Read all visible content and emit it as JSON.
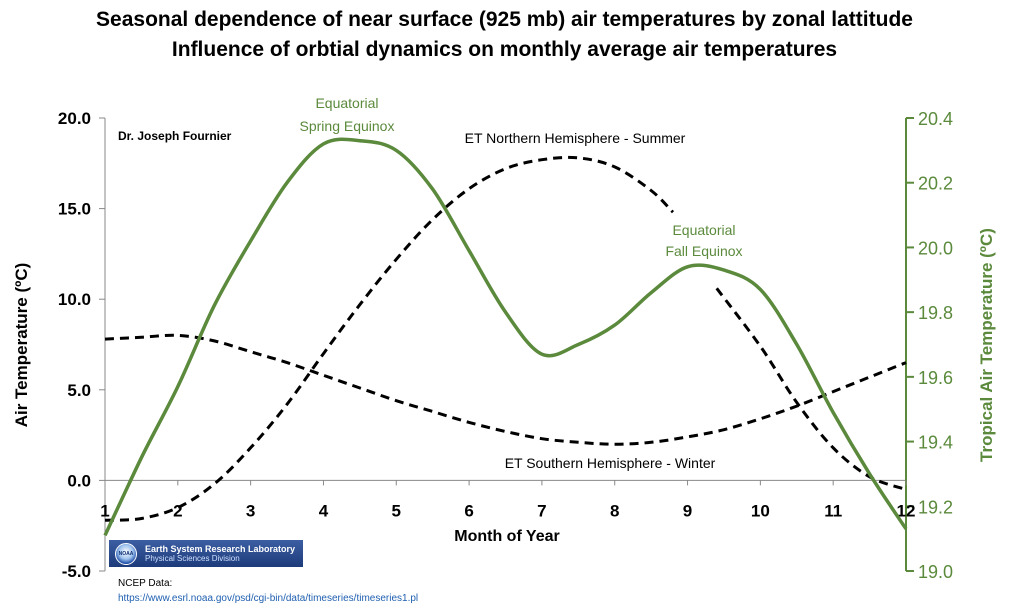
{
  "title_line1": "Seasonal dependence of near surface (925 mb) air temperatures by zonal lattitude",
  "title_line2": "Influence of orbtial dynamics on monthly average air temperatures",
  "author": "Dr. Joseph Fournier",
  "annotations": {
    "equatorial_spring_1": "Equatorial",
    "equatorial_spring_2": "Spring Equinox",
    "equatorial_fall_1": "Equatorial",
    "equatorial_fall_2": "Fall Equinox",
    "nh_summer": "ET Northern Hemisphere - Summer",
    "sh_winter": "ET Southern Hemisphere - Winter"
  },
  "source": {
    "logo_title": "Earth System Research Laboratory",
    "logo_subtitle": "Physical Sciences Division",
    "logo_badge": "NOAA",
    "label": "NCEP Data:",
    "url": "https://www.esrl.noaa.gov/psd/cgi-bin/data/timeseries/timeseries1.pl"
  },
  "chart_data": {
    "type": "line",
    "xlabel": "Month of Year",
    "ylabel": "Air Temperature (ºC)",
    "y2label": "Tropical Air Temperature (ºC)",
    "x_ticks": [
      "1",
      "2",
      "3",
      "4",
      "5",
      "6",
      "7",
      "8",
      "9",
      "10",
      "11",
      "12"
    ],
    "y_ticks": [
      "20.0",
      "15.0",
      "10.0",
      "5.0",
      "0.0",
      "-5.0"
    ],
    "y2_ticks": [
      "20.4",
      "20.2",
      "20.0",
      "19.8",
      "19.6",
      "19.4",
      "19.2",
      "19.0"
    ],
    "xlim": [
      1,
      12
    ],
    "ylim": [
      -5,
      20
    ],
    "y2lim": [
      19.0,
      20.4
    ],
    "colors": {
      "tropical": "#5b8a3c",
      "extratropical": "#000000"
    },
    "series": [
      {
        "name": "ET Northern Hemisphere - Summer",
        "axis": "left",
        "style": "dashed",
        "x": [
          1,
          1.5,
          2,
          2.5,
          3,
          3.5,
          4,
          4.5,
          5,
          5.5,
          6,
          6.5,
          7,
          7.5,
          8,
          8.5,
          8.8
        ],
        "y": [
          -2.2,
          -2.1,
          -1.5,
          -0.2,
          1.8,
          4.2,
          7.0,
          9.7,
          12.2,
          14.4,
          16.1,
          17.2,
          17.7,
          17.8,
          17.3,
          16.0,
          14.8
        ]
      },
      {
        "name": "ET Northern Hemisphere - Summer (continued)",
        "axis": "left",
        "style": "dashed",
        "x": [
          9.4,
          10,
          10.5,
          11,
          11.5,
          12
        ],
        "y": [
          10.6,
          7.4,
          4.3,
          1.8,
          0.2,
          -0.5
        ]
      },
      {
        "name": "ET Southern Hemisphere - Winter",
        "axis": "left",
        "style": "dashed",
        "x": [
          1,
          1.5,
          2,
          2.5,
          3,
          3.5,
          4,
          4.5,
          5,
          5.5,
          6,
          6.5,
          7,
          7.5,
          8,
          8.5,
          9,
          9.5,
          10,
          10.5,
          11,
          11.5,
          12
        ],
        "y": [
          7.8,
          7.9,
          8.0,
          7.7,
          7.1,
          6.5,
          5.8,
          5.1,
          4.4,
          3.8,
          3.2,
          2.7,
          2.3,
          2.1,
          2.0,
          2.1,
          2.4,
          2.8,
          3.4,
          4.1,
          4.9,
          5.7,
          6.5
        ]
      },
      {
        "name": "Tropical",
        "axis": "right",
        "style": "solid",
        "x": [
          1,
          1.5,
          2,
          2.5,
          3,
          3.5,
          4,
          4.5,
          5,
          5.5,
          6,
          6.5,
          7,
          7.5,
          8,
          8.5,
          9,
          9.5,
          10,
          10.5,
          11,
          11.5,
          12
        ],
        "y": [
          19.11,
          19.35,
          19.57,
          19.82,
          20.02,
          20.2,
          20.32,
          20.33,
          20.3,
          20.18,
          19.99,
          19.8,
          19.67,
          19.7,
          19.76,
          19.86,
          19.94,
          19.93,
          19.87,
          19.7,
          19.49,
          19.3,
          19.13
        ]
      }
    ]
  }
}
